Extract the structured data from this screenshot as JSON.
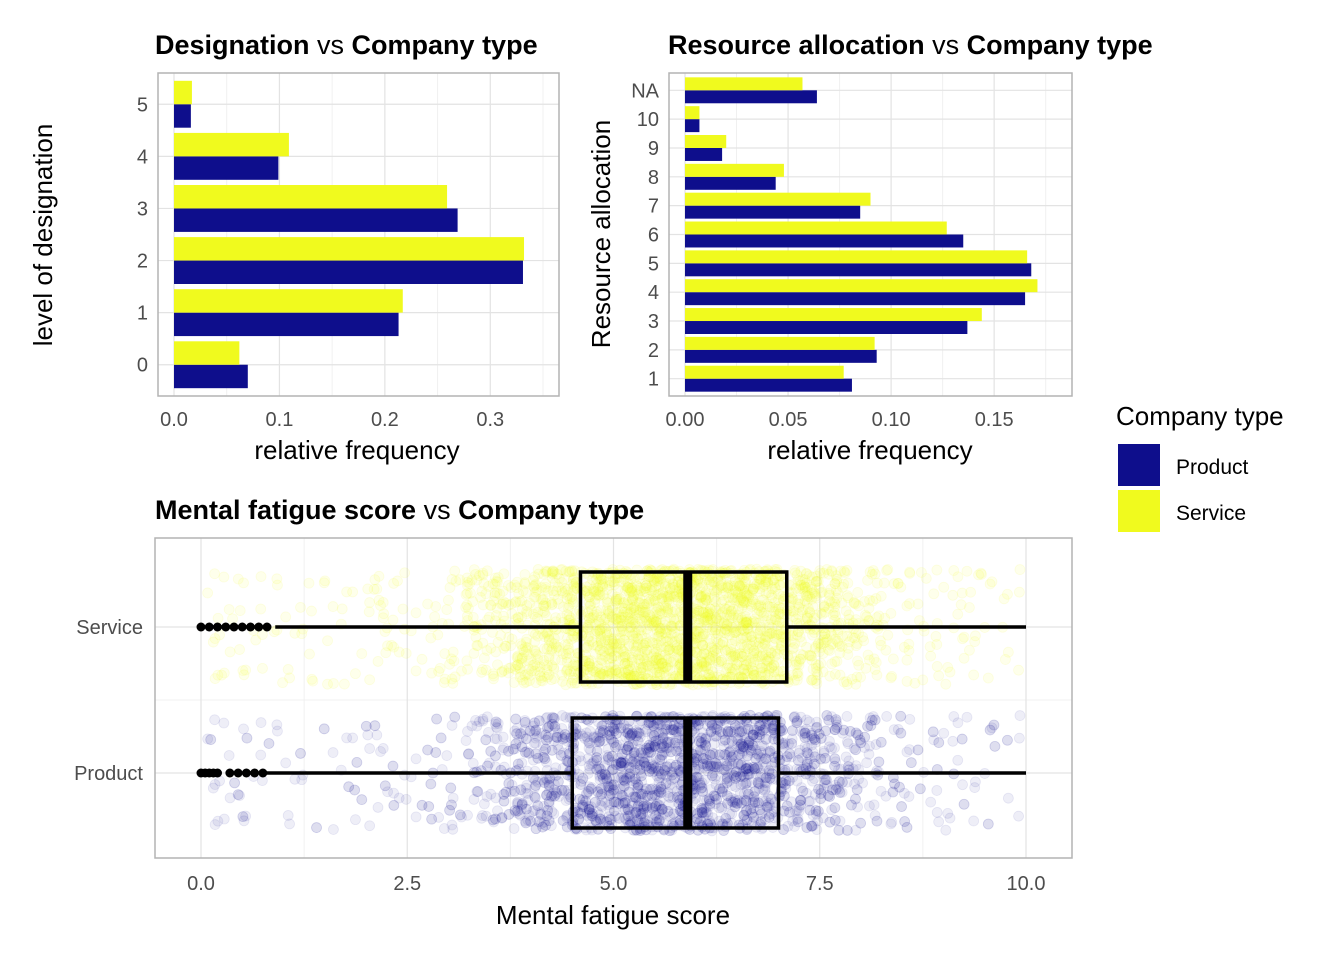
{
  "colors": {
    "product": "#0e0e8c",
    "service": "#f0fa1e",
    "grid": "#e3e3e3",
    "panel_border": "#b3b3b3"
  },
  "legend": {
    "title": "Company type",
    "items": [
      {
        "label": "Product",
        "color": "#0e0e8c"
      },
      {
        "label": "Service",
        "color": "#f0fa1e"
      }
    ]
  },
  "chart_data": [
    {
      "type": "bar",
      "orientation": "horizontal",
      "title": {
        "part1": "Designation",
        "vs": "vs",
        "part2": "Company type"
      },
      "xlabel": "relative frequency",
      "ylabel": "level of designation",
      "categories": [
        "0",
        "1",
        "2",
        "3",
        "4",
        "5"
      ],
      "xlim": [
        0,
        0.35
      ],
      "xticks": [
        "0.0",
        "0.1",
        "0.2",
        "0.3"
      ],
      "series": [
        {
          "name": "Product",
          "values": [
            0.07,
            0.213,
            0.331,
            0.269,
            0.099,
            0.016
          ]
        },
        {
          "name": "Service",
          "values": [
            0.062,
            0.217,
            0.332,
            0.259,
            0.109,
            0.017
          ]
        }
      ]
    },
    {
      "type": "bar",
      "orientation": "horizontal",
      "title": {
        "part1": "Resource  allocation",
        "vs": "vs",
        "part2": "Company type"
      },
      "xlabel": "relative frequency",
      "ylabel": "Resource allocation",
      "categories": [
        "1",
        "2",
        "3",
        "4",
        "5",
        "6",
        "7",
        "8",
        "9",
        "10",
        "NA"
      ],
      "xlim": [
        0,
        0.18
      ],
      "xticks": [
        "0.00",
        "0.05",
        "0.10",
        "0.15"
      ],
      "series": [
        {
          "name": "Product",
          "values": [
            0.081,
            0.093,
            0.137,
            0.165,
            0.168,
            0.135,
            0.085,
            0.044,
            0.018,
            0.007,
            0.064
          ]
        },
        {
          "name": "Service",
          "values": [
            0.077,
            0.092,
            0.144,
            0.171,
            0.166,
            0.127,
            0.09,
            0.048,
            0.02,
            0.007,
            0.057
          ]
        }
      ]
    },
    {
      "type": "boxplot",
      "orientation": "horizontal",
      "title": {
        "part1": "Mental  fatigue score",
        "vs": "vs",
        "part2": "Company type"
      },
      "xlabel": "Mental fatigue score",
      "categories": [
        "Product",
        "Service"
      ],
      "xlim": [
        0,
        10
      ],
      "xticks": [
        "0.0",
        "2.5",
        "5.0",
        "7.5",
        "10.0"
      ],
      "boxes": [
        {
          "name": "Product",
          "whisker_low": 0.8,
          "q1": 4.5,
          "median": 5.9,
          "q3": 7.0,
          "whisker_high": 10.0,
          "outliers": [
            0.0,
            0.05,
            0.1,
            0.15,
            0.2,
            0.35,
            0.45,
            0.55,
            0.65,
            0.75
          ]
        },
        {
          "name": "Service",
          "whisker_low": 0.9,
          "q1": 4.6,
          "median": 5.9,
          "q3": 7.1,
          "whisker_high": 10.0,
          "outliers": [
            0.0,
            0.1,
            0.2,
            0.3,
            0.4,
            0.5,
            0.6,
            0.7,
            0.8
          ]
        }
      ],
      "jitter": "semi-transparent raw data points overlaid on each box"
    }
  ]
}
